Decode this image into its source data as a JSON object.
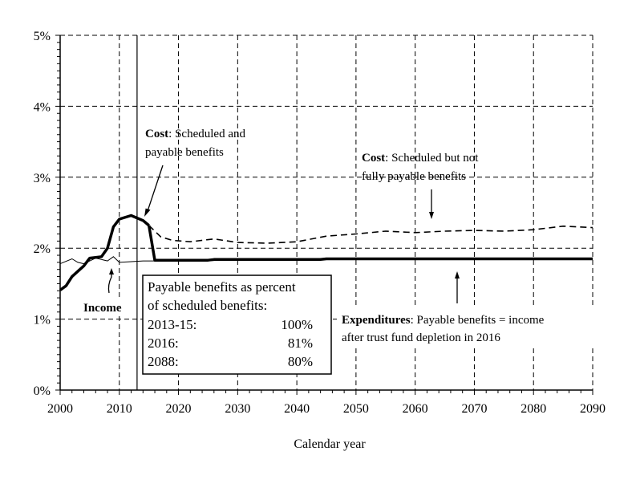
{
  "chart_data": {
    "type": "line",
    "xlabel": "Calendar year",
    "ylabel": "",
    "xlim": [
      2000,
      2090
    ],
    "ylim": [
      0,
      5
    ],
    "x_ticks": [
      2000,
      2010,
      2020,
      2030,
      2040,
      2050,
      2060,
      2070,
      2080,
      2090
    ],
    "x_tick_labels": [
      "2000",
      "2010",
      "2020",
      "2030",
      "2040",
      "2050",
      "2060",
      "2070",
      "2080",
      "2090"
    ],
    "y_ticks": [
      0,
      1,
      2,
      3,
      4,
      5
    ],
    "y_tick_labels": [
      "0%",
      "1%",
      "2%",
      "3%",
      "4%",
      "5%"
    ],
    "grid": "dashed",
    "reference_line_year": 2013,
    "series": [
      {
        "name": "Income",
        "style": "thin-solid",
        "points": [
          [
            2000,
            1.78
          ],
          [
            2002,
            1.85
          ],
          [
            2003,
            1.8
          ],
          [
            2004,
            1.78
          ],
          [
            2006,
            1.86
          ],
          [
            2008,
            1.82
          ],
          [
            2009,
            1.88
          ],
          [
            2010,
            1.8
          ],
          [
            2012,
            1.81
          ],
          [
            2014,
            1.82
          ],
          [
            2016,
            1.82
          ],
          [
            2020,
            1.82
          ],
          [
            2030,
            1.83
          ],
          [
            2040,
            1.84
          ],
          [
            2050,
            1.85
          ],
          [
            2060,
            1.85
          ],
          [
            2070,
            1.85
          ],
          [
            2080,
            1.85
          ],
          [
            2090,
            1.85
          ]
        ]
      },
      {
        "name": "Cost: Scheduled and payable benefits",
        "style": "thick-solid",
        "points": [
          [
            2000,
            1.41
          ],
          [
            2001,
            1.47
          ],
          [
            2002,
            1.6
          ],
          [
            2004,
            1.75
          ],
          [
            2005,
            1.86
          ],
          [
            2007,
            1.88
          ],
          [
            2008,
            2.0
          ],
          [
            2009,
            2.3
          ],
          [
            2010,
            2.41
          ],
          [
            2012,
            2.46
          ],
          [
            2014,
            2.39
          ],
          [
            2015,
            2.32
          ]
        ]
      },
      {
        "name": "Cost: Scheduled but not fully payable benefits",
        "style": "dashed",
        "points": [
          [
            2015,
            2.32
          ],
          [
            2017,
            2.16
          ],
          [
            2019,
            2.11
          ],
          [
            2022,
            2.09
          ],
          [
            2026,
            2.13
          ],
          [
            2030,
            2.08
          ],
          [
            2035,
            2.07
          ],
          [
            2040,
            2.09
          ],
          [
            2045,
            2.17
          ],
          [
            2050,
            2.2
          ],
          [
            2055,
            2.24
          ],
          [
            2060,
            2.22
          ],
          [
            2065,
            2.24
          ],
          [
            2070,
            2.25
          ],
          [
            2075,
            2.24
          ],
          [
            2080,
            2.26
          ],
          [
            2085,
            2.31
          ],
          [
            2090,
            2.29
          ]
        ]
      },
      {
        "name": "Expenditures: Payable benefits = income after trust fund depletion in 2016",
        "style": "thick-solid",
        "points": [
          [
            2015,
            2.32
          ],
          [
            2016,
            1.83
          ],
          [
            2025,
            1.83
          ],
          [
            2026,
            1.84
          ],
          [
            2044,
            1.84
          ],
          [
            2045,
            1.85
          ],
          [
            2090,
            1.85
          ]
        ]
      }
    ],
    "annotations": {
      "cost_scheduled_payable": {
        "bold": "Cost",
        "line1_rest": ": Scheduled and",
        "line2": "payable benefits"
      },
      "cost_not_payable": {
        "bold": "Cost",
        "line1_rest": ": Scheduled but not",
        "line2": "fully payable benefits"
      },
      "income": "Income",
      "expenditures": {
        "bold": "Expenditures",
        "line1_rest": ": Payable benefits = income",
        "line2": "after trust fund depletion in 2016"
      }
    },
    "legend_box": {
      "title_line1": "Payable benefits as percent",
      "title_line2": "of scheduled benefits:",
      "rows": [
        {
          "label": "2013-15:",
          "value": "100%"
        },
        {
          "label": "2016:",
          "value": "81%"
        },
        {
          "label": "2088:",
          "value": "80%"
        }
      ]
    }
  }
}
